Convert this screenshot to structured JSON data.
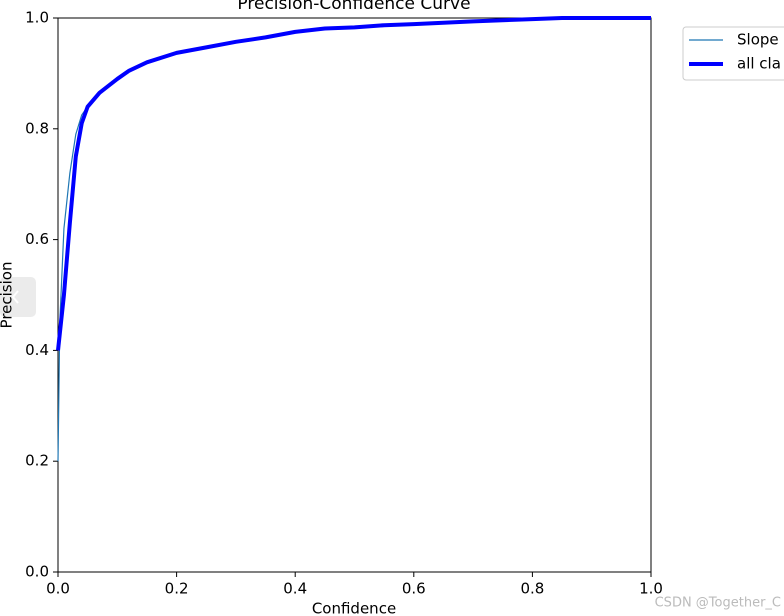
{
  "chart_data": {
    "type": "line",
    "title": "Precision-Confidence Curve",
    "x_label": "Confidence",
    "y_label": "Precision",
    "xlim": [
      0,
      1
    ],
    "ylim": [
      0,
      1
    ],
    "xticks": [
      {
        "value": 0,
        "label": "0.0"
      },
      0.2,
      0.4,
      0.6,
      0.8,
      {
        "value": 1,
        "label": "1.0"
      }
    ],
    "yticks": [
      {
        "value": 0,
        "label": "0.0"
      },
      0.2,
      0.4,
      0.6,
      0.8,
      {
        "value": 1,
        "label": "1.0"
      }
    ],
    "series": [
      {
        "name": "Slope",
        "color": "#1f77b4",
        "width": 1.2,
        "x": [
          0,
          0.003,
          0.01,
          0.02,
          0.03,
          0.04,
          0.05,
          0.07,
          0.1,
          0.12,
          0.15,
          0.2,
          0.25,
          0.3,
          0.35,
          0.4,
          0.45,
          0.5,
          0.55,
          0.6,
          0.7,
          0.8,
          0.85,
          1
        ],
        "values": [
          0.2,
          0.45,
          0.62,
          0.72,
          0.79,
          0.825,
          0.84,
          0.865,
          0.89,
          0.905,
          0.92,
          0.937,
          0.947,
          0.957,
          0.965,
          0.975,
          0.981,
          0.983,
          0.987,
          0.989,
          0.994,
          0.998,
          1,
          1
        ]
      },
      {
        "name": "all cla",
        "color": "#0000ff",
        "width": 4,
        "x": [
          0,
          0.01,
          0.02,
          0.03,
          0.04,
          0.05,
          0.07,
          0.1,
          0.12,
          0.15,
          0.2,
          0.25,
          0.3,
          0.35,
          0.4,
          0.45,
          0.5,
          0.55,
          0.6,
          0.7,
          0.8,
          0.85,
          1
        ],
        "values": [
          0.4,
          0.5,
          0.63,
          0.75,
          0.81,
          0.84,
          0.865,
          0.89,
          0.905,
          0.92,
          0.937,
          0.947,
          0.957,
          0.965,
          0.975,
          0.981,
          0.983,
          0.987,
          0.989,
          0.994,
          0.998,
          1,
          1
        ]
      }
    ],
    "watermark": "CSDN @Together_C"
  }
}
